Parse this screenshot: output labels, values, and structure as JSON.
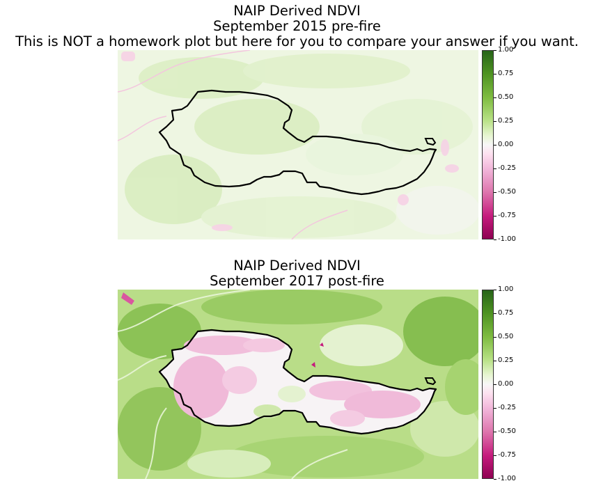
{
  "panels": [
    {
      "title_lines": [
        "NAIP Derived NDVI",
        "September 2015 pre-fire",
        "This is NOT a homework plot but here for you to compare your answer if you want."
      ]
    },
    {
      "title_lines": [
        "NAIP Derived NDVI",
        "September 2017 post-fire"
      ]
    }
  ],
  "chart_data": [
    {
      "type": "heatmap",
      "title": "NAIP Derived NDVI\nSeptember 2015 pre-fire\nThis is NOT a homework plot but here for you to compare your answer if you want.",
      "colormap": "PiYG",
      "clim": [
        -1.0,
        1.0
      ],
      "colorbar_ticks": [
        "1.00",
        "0.75",
        "0.50",
        "0.25",
        "0.00",
        "-0.25",
        "-0.50",
        "-0.75",
        "-1.00"
      ],
      "colorbar_tick_values": [
        1.0,
        0.75,
        0.5,
        0.25,
        0.0,
        -0.25,
        -0.5,
        -0.75,
        -1.0
      ],
      "axes_visible": false,
      "overlay": "fire perimeter outline (black)",
      "colors": {
        "low": "#8e0152",
        "mid": "#f7f7f7",
        "high": "#276419",
        "outline": "#000000"
      }
    },
    {
      "type": "heatmap",
      "title": "NAIP Derived NDVI\nSeptember 2017 post-fire",
      "colormap": "PiYG",
      "clim": [
        -1.0,
        1.0
      ],
      "colorbar_ticks": [
        "1.00",
        "0.75",
        "0.50",
        "0.25",
        "0.00",
        "-0.25",
        "-0.50",
        "-0.75",
        "-1.00"
      ],
      "colorbar_tick_values": [
        1.0,
        0.75,
        0.5,
        0.25,
        0.0,
        -0.25,
        -0.5,
        -0.75,
        -1.0
      ],
      "axes_visible": false,
      "overlay": "fire perimeter outline (black)",
      "colors": {
        "low": "#8e0152",
        "mid": "#f7f7f7",
        "high": "#276419",
        "outline": "#000000"
      }
    }
  ]
}
